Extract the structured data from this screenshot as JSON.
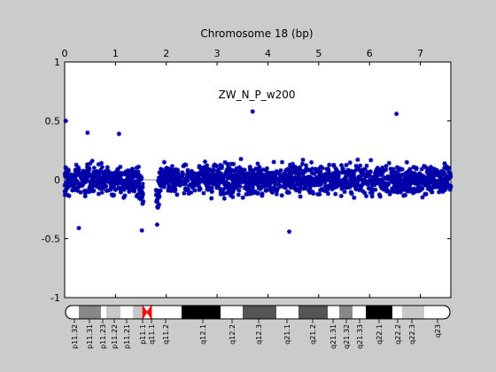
{
  "chart_data": {
    "type": "scatter",
    "xlabel": "Chromosome 18 (bp)",
    "ylabel": "",
    "annotation": "ZW_N_P_w200",
    "xlim": [
      0,
      7.6
    ],
    "ylim": [
      -1,
      1
    ],
    "x_ticks": [
      "0",
      "1",
      "2",
      "3",
      "4",
      "5",
      "6",
      "7"
    ],
    "y_ticks": [
      "1",
      "0.5",
      "0",
      "-0.5",
      "-1"
    ],
    "series": [
      {
        "marker": "asterisk",
        "color": "#0000a8",
        "segments": [
          {
            "x_start": 0.0,
            "x_end": 1.55,
            "center": 0.0,
            "spread": 0.13
          },
          {
            "x_start": 1.8,
            "x_end": 7.6,
            "center": 0.0,
            "spread": 0.13
          }
        ],
        "outliers": [
          {
            "x": 0.02,
            "y": 0.5
          },
          {
            "x": 0.28,
            "y": -0.41
          },
          {
            "x": 0.45,
            "y": 0.4
          },
          {
            "x": 1.07,
            "y": 0.39
          },
          {
            "x": 1.52,
            "y": -0.43
          },
          {
            "x": 1.82,
            "y": -0.38
          },
          {
            "x": 3.7,
            "y": 0.58
          },
          {
            "x": 4.42,
            "y": -0.44
          },
          {
            "x": 6.53,
            "y": 0.56
          }
        ]
      }
    ],
    "zero_line": true,
    "grid": false
  },
  "ideogram": {
    "bands": [
      "p11.32",
      "p11.31",
      "p11.23",
      "p11.22",
      "p11.21",
      "p11.1",
      "q11.1",
      "q11.2",
      "q12.1",
      "q12.2",
      "q12.3",
      "q21.1",
      "q21.2",
      "q21.31",
      "q21.32",
      "q21.33",
      "q22.1",
      "q22.2",
      "q22.3",
      "q23"
    ],
    "colors": {
      "black": "#000000",
      "dark": "#555555",
      "mid": "#888888",
      "light": "#c8c8c8",
      "centromere": "#ee1111"
    }
  }
}
